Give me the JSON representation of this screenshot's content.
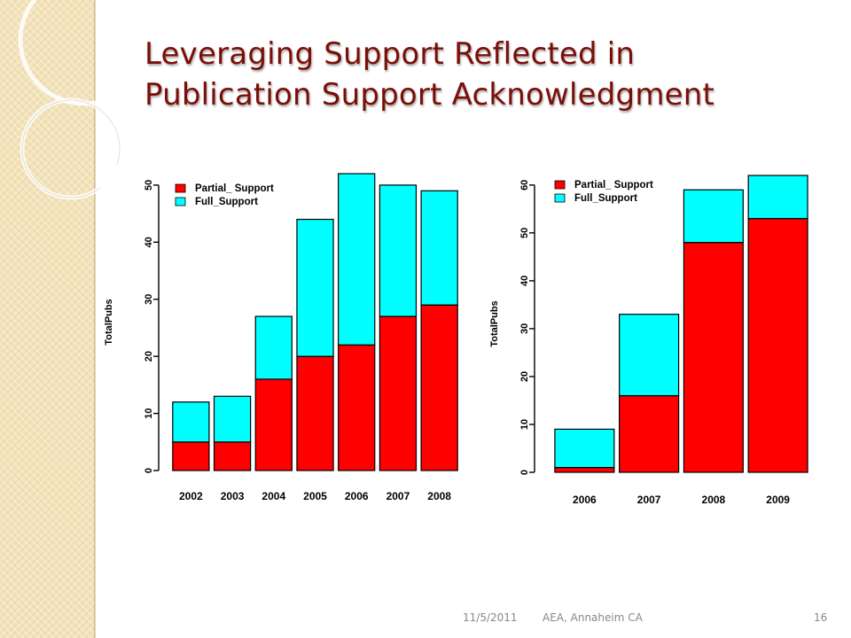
{
  "slide": {
    "title_line1": "Leveraging Support Reflected in",
    "title_line2": "Publication Support Acknowledgment"
  },
  "footer": {
    "date": "11/5/2011",
    "venue": "AEA, Annaheim CA",
    "page": "16"
  },
  "colors": {
    "partial": "#ff0000",
    "full": "#00ffff",
    "title": "#7a0f08"
  },
  "chart_data": [
    {
      "type": "bar",
      "stacked": true,
      "categories": [
        "2002",
        "2003",
        "2004",
        "2005",
        "2006",
        "2007",
        "2008"
      ],
      "series": [
        {
          "name": "Partial_ Support",
          "values": [
            5,
            5,
            16,
            20,
            22,
            27,
            29
          ]
        },
        {
          "name": "Full_Support",
          "values": [
            7,
            8,
            11,
            24,
            30,
            23,
            20
          ]
        }
      ],
      "ylabel": "TotalPubs",
      "xlabel": "",
      "yticks": [
        0,
        10,
        20,
        30,
        40,
        50
      ],
      "ylim": [
        0,
        52
      ],
      "legend": "top-left",
      "grid": false
    },
    {
      "type": "bar",
      "stacked": true,
      "categories": [
        "2006",
        "2007",
        "2008",
        "2009"
      ],
      "series": [
        {
          "name": "Partial_ Support",
          "values": [
            1,
            16,
            48,
            53
          ]
        },
        {
          "name": "Full_Support",
          "values": [
            8,
            17,
            11,
            9
          ]
        }
      ],
      "ylabel": "TotalPubs",
      "xlabel": "",
      "yticks": [
        0,
        10,
        20,
        30,
        40,
        50,
        60
      ],
      "ylim": [
        0,
        62
      ],
      "legend": "top-left",
      "grid": false
    }
  ]
}
